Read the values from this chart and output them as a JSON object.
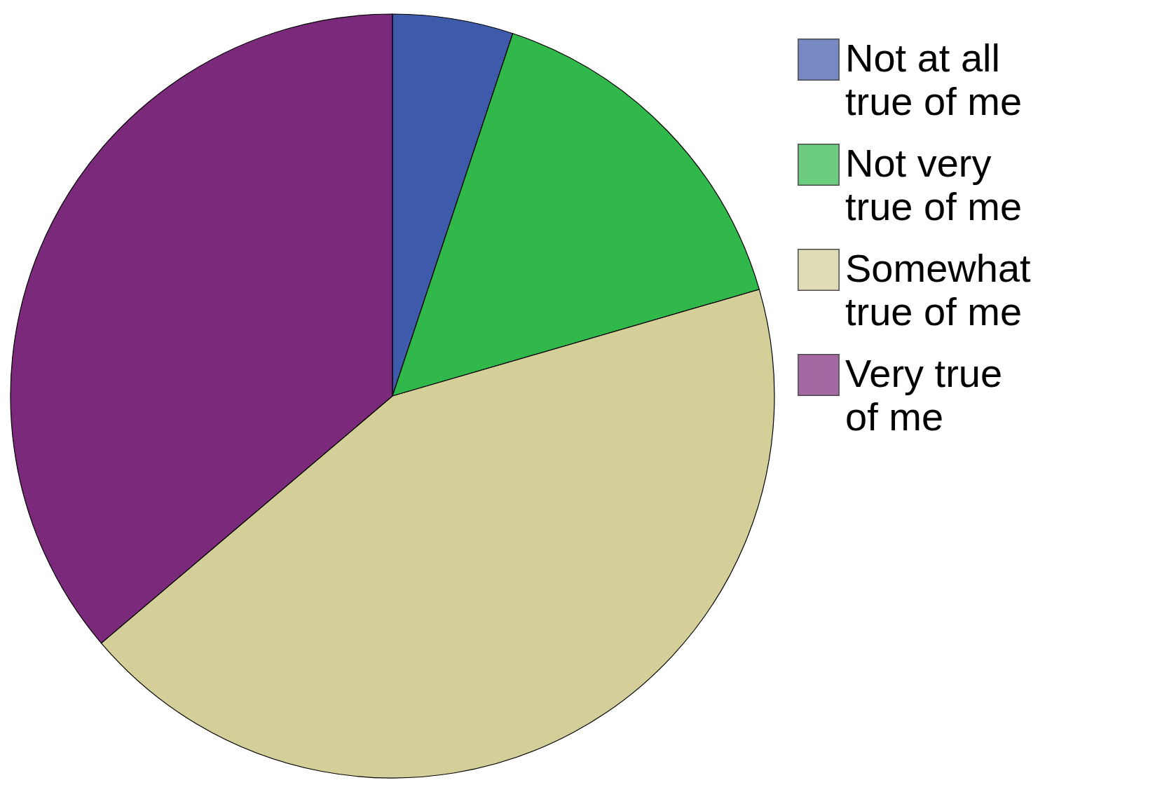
{
  "chart_data": {
    "type": "pie",
    "categories": [
      "Not at all true of me",
      "Not very true of me",
      "Somewhat true of me",
      "Very  true of me"
    ],
    "values": [
      5.1,
      15.4,
      43.3,
      36.2
    ],
    "colors": [
      "#3e5aab",
      "#30b84a",
      "#d4cf98",
      "#7b2a7b"
    ],
    "legend": "right"
  }
}
